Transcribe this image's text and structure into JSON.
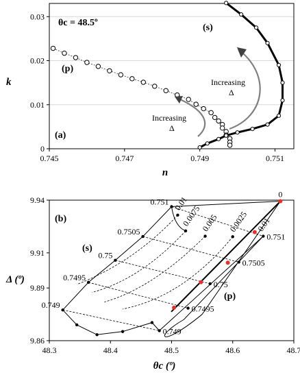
{
  "chart_data": [
    {
      "type": "scatter",
      "panel_label": "(a)",
      "xlabel": "n",
      "ylabel": "k",
      "xlim": [
        0.745,
        0.7515
      ],
      "ylim": [
        0,
        0.033
      ],
      "xticks": [
        "0.745",
        "0.747",
        "0.749",
        "0.751"
      ],
      "yticks": [
        "0",
        "0.01",
        "0.02",
        "0.03"
      ],
      "grid": "horizontal",
      "annotations": {
        "theta": "θc = 48.5º",
        "s_label": "(s)",
        "p_label": "(p)",
        "inc1_line1": "Increasing",
        "inc1_line2": "Δ",
        "inc2_line1": "Increasing",
        "inc2_line2": "Δ"
      },
      "series": [
        {
          "label_ref": "(p)",
          "x": [
            0.7451,
            0.7454,
            0.7457,
            0.746,
            0.7463,
            0.7466,
            0.7469,
            0.7472,
            0.7475,
            0.7478,
            0.7481,
            0.7484,
            0.7487,
            0.7489,
            0.7491,
            0.7493,
            0.7494,
            0.7495,
            0.7496,
            0.7496,
            0.7497,
            0.7497,
            0.7498,
            0.7498,
            0.7498
          ],
          "y": [
            0.0228,
            0.0217,
            0.0207,
            0.0196,
            0.0187,
            0.0177,
            0.0168,
            0.0159,
            0.0151,
            0.0142,
            0.0132,
            0.0122,
            0.0112,
            0.0101,
            0.0091,
            0.0082,
            0.0071,
            0.0063,
            0.0055,
            0.0047,
            0.0039,
            0.0031,
            0.0023,
            0.0015,
            0.0008
          ]
        },
        {
          "label_ref": "(s)",
          "x": [
            0.7497,
            0.7501,
            0.7505,
            0.7508,
            0.7511,
            0.7512,
            0.7512,
            0.7511,
            0.7508,
            0.7504,
            0.75,
            0.7497,
            0.7495,
            0.7492,
            0.749
          ],
          "y": [
            0.0331,
            0.0305,
            0.0275,
            0.024,
            0.019,
            0.015,
            0.011,
            0.0075,
            0.0055,
            0.0045,
            0.0037,
            0.003,
            0.0022,
            0.0012,
            0.0003
          ]
        }
      ]
    },
    {
      "type": "line",
      "panel_label": "(b)",
      "xlabel": "θc (º)",
      "ylabel": "Δ (º)",
      "xlim": [
        48.3,
        48.7
      ],
      "ylim": [
        9.86,
        9.94
      ],
      "xticks": [
        "48.3",
        "48.4",
        "48.5",
        "48.6",
        "48.7"
      ],
      "yticks": [
        "9.86",
        "9.89",
        "9.91",
        "9.94"
      ],
      "curve_labels": {
        "s": "(s)",
        "p": "(p)"
      },
      "s_points": [
        {
          "label": "0.751",
          "x": 48.5,
          "y": 9.9363
        },
        {
          "label": "0.7505",
          "x": 48.453,
          "y": 9.9193
        },
        {
          "label": "0.75",
          "x": 48.408,
          "y": 9.9058
        },
        {
          "label": "0.7495",
          "x": 48.364,
          "y": 9.8932
        },
        {
          "label": "0.749",
          "x": 48.322,
          "y": 9.8775
        }
      ],
      "p_points": [
        {
          "label": "0.751",
          "x": 48.65,
          "y": 9.9195
        },
        {
          "label": "0.7505",
          "x": 48.61,
          "y": 9.9047
        },
        {
          "label": "0.75",
          "x": 48.563,
          "y": 9.8924
        },
        {
          "label": "0.7495",
          "x": 48.527,
          "y": 9.8785
        },
        {
          "label": "0.749",
          "x": 48.48,
          "y": 9.8657
        }
      ],
      "k_points": [
        {
          "label": "0.01",
          "x": 48.51,
          "y": 9.9315
        },
        {
          "label": "0.0075",
          "x": 48.523,
          "y": 9.9225
        },
        {
          "label": "0.005",
          "x": 48.555,
          "y": 9.9195
        },
        {
          "label": "0.0025",
          "x": 48.6,
          "y": 9.9192
        },
        {
          "label": "0",
          "x": 48.678,
          "y": 9.9394
        }
      ],
      "bottom_envelope": [
        {
          "x": 48.345,
          "y": 9.869
        },
        {
          "x": 48.378,
          "y": 9.8634
        },
        {
          "x": 48.42,
          "y": 9.8652
        },
        {
          "x": 48.468,
          "y": 9.8703
        }
      ],
      "red_points": [
        {
          "x": 48.678,
          "y": 9.9394
        },
        {
          "x": 48.636,
          "y": 9.9218
        },
        {
          "x": 48.592,
          "y": 9.9044
        },
        {
          "x": 48.548,
          "y": 9.8933
        },
        {
          "x": 48.504,
          "y": 9.8788
        }
      ],
      "right_k_label": "0.01"
    }
  ]
}
